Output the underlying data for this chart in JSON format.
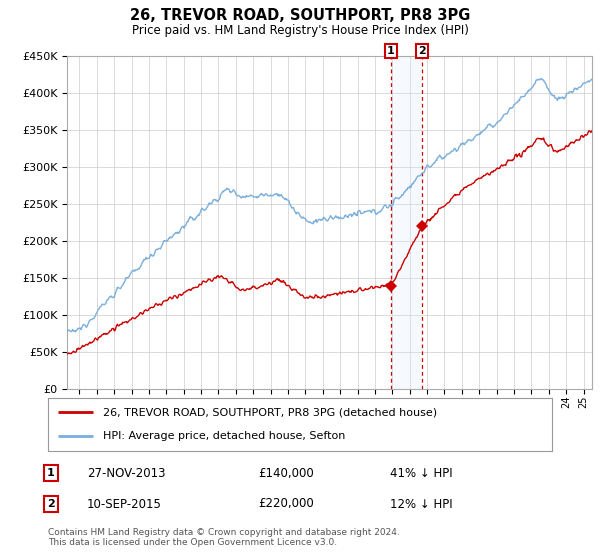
{
  "title": "26, TREVOR ROAD, SOUTHPORT, PR8 3PG",
  "subtitle": "Price paid vs. HM Land Registry's House Price Index (HPI)",
  "legend_line1": "26, TREVOR ROAD, SOUTHPORT, PR8 3PG (detached house)",
  "legend_line2": "HPI: Average price, detached house, Sefton",
  "sale1_date": "27-NOV-2013",
  "sale1_price": "£140,000",
  "sale1_hpi": "41% ↓ HPI",
  "sale1_year": 2013.92,
  "sale1_value": 140000,
  "sale2_date": "10-SEP-2015",
  "sale2_price": "£220,000",
  "sale2_hpi": "12% ↓ HPI",
  "sale2_year": 2015.69,
  "sale2_value": 220000,
  "footer": "Contains HM Land Registry data © Crown copyright and database right 2024.\nThis data is licensed under the Open Government Licence v3.0.",
  "red_color": "#cc0000",
  "blue_color": "#7aafdd",
  "highlight_color": "#ddeeff",
  "vline_color": "#cc0000",
  "grid_color": "#cccccc",
  "background_color": "#ffffff",
  "ylim": [
    0,
    450000
  ],
  "xlim_start": 1995.3,
  "xlim_end": 2025.5
}
